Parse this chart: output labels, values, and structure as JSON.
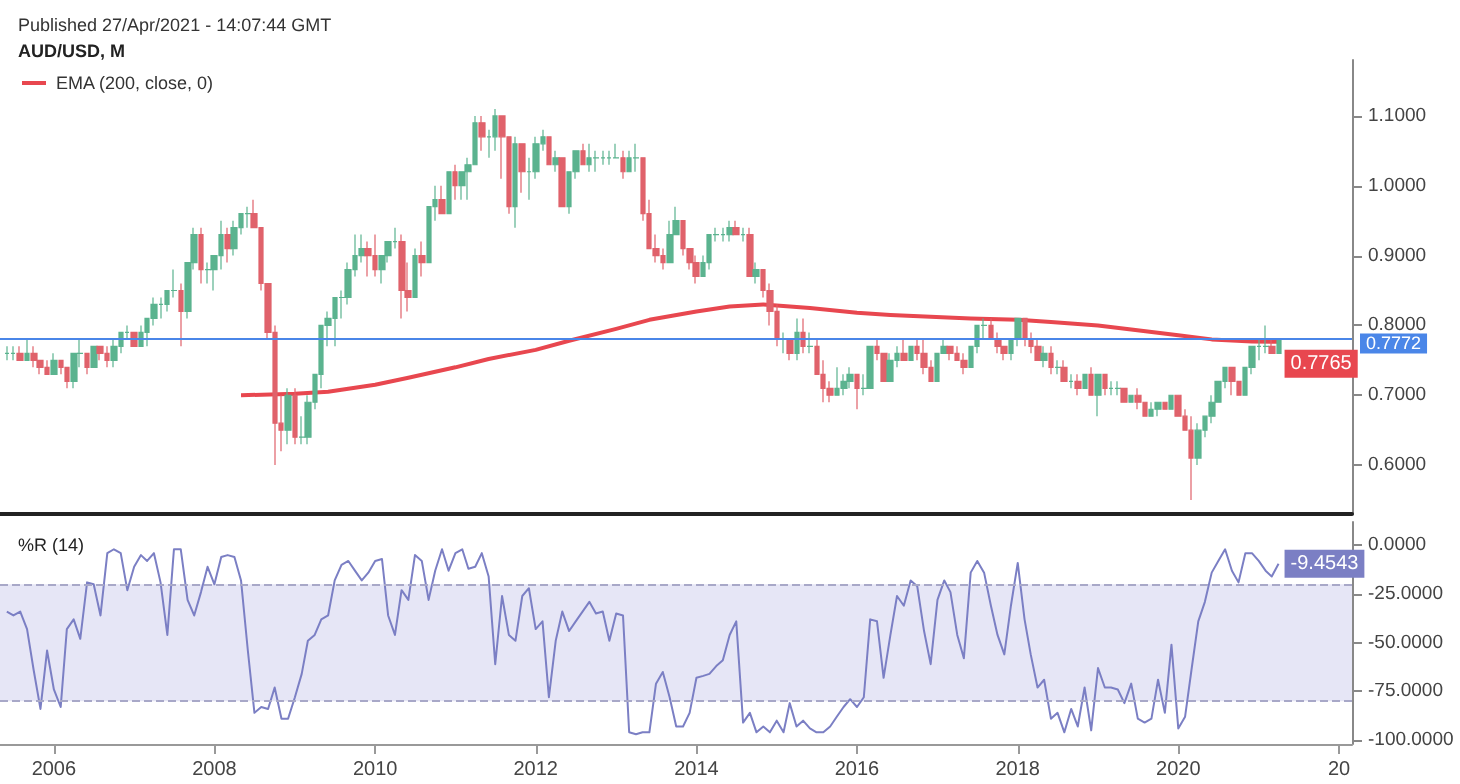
{
  "chart_data": [
    {
      "type": "candlestick",
      "title": "AUD/USD, M",
      "subtitle": "Published 27/Apr/2021 - 14:07:44 GMT",
      "x": [
        "2005-06",
        "2005-07",
        "2005-08",
        "2005-09",
        "2005-10",
        "2005-11",
        "2005-12",
        "2006-01",
        "2006-02",
        "2006-03",
        "2006-04",
        "2006-05",
        "2006-06",
        "2006-07",
        "2006-08",
        "2006-09",
        "2006-10",
        "2006-11",
        "2006-12",
        "2007-01",
        "2007-02",
        "2007-03",
        "2007-04",
        "2007-05",
        "2007-06",
        "2007-07",
        "2007-08",
        "2007-09",
        "2007-10",
        "2007-11",
        "2007-12",
        "2008-01",
        "2008-02",
        "2008-03",
        "2008-04",
        "2008-05",
        "2008-06",
        "2008-07",
        "2008-08",
        "2008-09",
        "2008-10",
        "2008-11",
        "2008-12",
        "2009-01",
        "2009-02",
        "2009-03",
        "2009-04",
        "2009-05",
        "2009-06",
        "2009-07",
        "2009-08",
        "2009-09",
        "2009-10",
        "2009-11",
        "2009-12",
        "2010-01",
        "2010-02",
        "2010-03",
        "2010-04",
        "2010-05",
        "2010-06",
        "2010-07",
        "2010-08",
        "2010-09",
        "2010-10",
        "2010-11",
        "2010-12",
        "2011-01",
        "2011-02",
        "2011-03",
        "2011-04",
        "2011-05",
        "2011-06",
        "2011-07",
        "2011-08",
        "2011-09",
        "2011-10",
        "2011-11",
        "2011-12",
        "2012-01",
        "2012-02",
        "2012-03",
        "2012-04",
        "2012-05",
        "2012-06",
        "2012-07",
        "2012-08",
        "2012-09",
        "2012-10",
        "2012-11",
        "2012-12",
        "2013-01",
        "2013-02",
        "2013-03",
        "2013-04",
        "2013-05",
        "2013-06",
        "2013-07",
        "2013-08",
        "2013-09",
        "2013-10",
        "2013-11",
        "2013-12",
        "2014-01",
        "2014-02",
        "2014-03",
        "2014-04",
        "2014-05",
        "2014-06",
        "2014-07",
        "2014-08",
        "2014-09",
        "2014-10",
        "2014-11",
        "2014-12",
        "2015-01",
        "2015-02",
        "2015-03",
        "2015-04",
        "2015-05",
        "2015-06",
        "2015-07",
        "2015-08",
        "2015-09",
        "2015-10",
        "2015-11",
        "2015-12",
        "2016-01",
        "2016-02",
        "2016-03",
        "2016-04",
        "2016-05",
        "2016-06",
        "2016-07",
        "2016-08",
        "2016-09",
        "2016-10",
        "2016-11",
        "2016-12",
        "2017-01",
        "2017-02",
        "2017-03",
        "2017-04",
        "2017-05",
        "2017-06",
        "2017-07",
        "2017-08",
        "2017-09",
        "2017-10",
        "2017-11",
        "2017-12",
        "2018-01",
        "2018-02",
        "2018-03",
        "2018-04",
        "2018-05",
        "2018-06",
        "2018-07",
        "2018-08",
        "2018-09",
        "2018-10",
        "2018-11",
        "2018-12",
        "2019-01",
        "2019-02",
        "2019-03",
        "2019-04",
        "2019-05",
        "2019-06",
        "2019-07",
        "2019-08",
        "2019-09",
        "2019-10",
        "2019-11",
        "2019-12",
        "2020-01",
        "2020-02",
        "2020-03",
        "2020-04",
        "2020-05",
        "2020-06",
        "2020-07",
        "2020-08",
        "2020-09",
        "2020-10",
        "2020-11",
        "2020-12",
        "2021-01",
        "2021-02",
        "2021-03",
        "2021-04"
      ],
      "ohlc": [
        [
          0.76,
          0.77,
          0.75,
          0.76
        ],
        [
          0.76,
          0.77,
          0.75,
          0.76
        ],
        [
          0.76,
          0.77,
          0.75,
          0.75
        ],
        [
          0.75,
          0.78,
          0.75,
          0.76
        ],
        [
          0.76,
          0.77,
          0.74,
          0.75
        ],
        [
          0.75,
          0.75,
          0.73,
          0.74
        ],
        [
          0.74,
          0.75,
          0.73,
          0.73
        ],
        [
          0.73,
          0.76,
          0.73,
          0.75
        ],
        [
          0.75,
          0.75,
          0.73,
          0.74
        ],
        [
          0.74,
          0.74,
          0.71,
          0.72
        ],
        [
          0.72,
          0.76,
          0.71,
          0.76
        ],
        [
          0.76,
          0.78,
          0.74,
          0.76
        ],
        [
          0.76,
          0.76,
          0.73,
          0.74
        ],
        [
          0.74,
          0.77,
          0.74,
          0.77
        ],
        [
          0.77,
          0.77,
          0.75,
          0.76
        ],
        [
          0.76,
          0.77,
          0.74,
          0.75
        ],
        [
          0.75,
          0.78,
          0.74,
          0.77
        ],
        [
          0.77,
          0.79,
          0.76,
          0.79
        ],
        [
          0.79,
          0.8,
          0.78,
          0.79
        ],
        [
          0.79,
          0.79,
          0.77,
          0.77
        ],
        [
          0.77,
          0.8,
          0.77,
          0.79
        ],
        [
          0.79,
          0.81,
          0.77,
          0.81
        ],
        [
          0.81,
          0.84,
          0.8,
          0.83
        ],
        [
          0.83,
          0.84,
          0.81,
          0.83
        ],
        [
          0.83,
          0.85,
          0.82,
          0.85
        ],
        [
          0.85,
          0.88,
          0.84,
          0.85
        ],
        [
          0.85,
          0.86,
          0.77,
          0.82
        ],
        [
          0.82,
          0.89,
          0.81,
          0.89
        ],
        [
          0.89,
          0.94,
          0.88,
          0.93
        ],
        [
          0.93,
          0.94,
          0.86,
          0.88
        ],
        [
          0.88,
          0.89,
          0.86,
          0.88
        ],
        [
          0.88,
          0.9,
          0.85,
          0.9
        ],
        [
          0.9,
          0.95,
          0.88,
          0.93
        ],
        [
          0.93,
          0.94,
          0.89,
          0.91
        ],
        [
          0.91,
          0.95,
          0.9,
          0.94
        ],
        [
          0.94,
          0.96,
          0.93,
          0.96
        ],
        [
          0.96,
          0.97,
          0.94,
          0.96
        ],
        [
          0.96,
          0.98,
          0.94,
          0.94
        ],
        [
          0.94,
          0.94,
          0.85,
          0.86
        ],
        [
          0.86,
          0.86,
          0.78,
          0.79
        ],
        [
          0.79,
          0.8,
          0.6,
          0.66
        ],
        [
          0.66,
          0.7,
          0.62,
          0.65
        ],
        [
          0.65,
          0.71,
          0.63,
          0.7
        ],
        [
          0.7,
          0.71,
          0.63,
          0.64
        ],
        [
          0.64,
          0.67,
          0.63,
          0.64
        ],
        [
          0.64,
          0.7,
          0.63,
          0.69
        ],
        [
          0.69,
          0.73,
          0.68,
          0.73
        ],
        [
          0.73,
          0.8,
          0.71,
          0.8
        ],
        [
          0.8,
          0.82,
          0.77,
          0.81
        ],
        [
          0.81,
          0.84,
          0.77,
          0.84
        ],
        [
          0.84,
          0.85,
          0.81,
          0.84
        ],
        [
          0.84,
          0.89,
          0.83,
          0.88
        ],
        [
          0.88,
          0.93,
          0.87,
          0.9
        ],
        [
          0.9,
          0.93,
          0.89,
          0.91
        ],
        [
          0.91,
          0.92,
          0.87,
          0.9
        ],
        [
          0.9,
          0.93,
          0.87,
          0.88
        ],
        [
          0.88,
          0.9,
          0.86,
          0.9
        ],
        [
          0.9,
          0.92,
          0.89,
          0.92
        ],
        [
          0.92,
          0.94,
          0.91,
          0.92
        ],
        [
          0.92,
          0.93,
          0.81,
          0.85
        ],
        [
          0.85,
          0.89,
          0.82,
          0.84
        ],
        [
          0.84,
          0.91,
          0.84,
          0.9
        ],
        [
          0.9,
          0.92,
          0.87,
          0.89
        ],
        [
          0.89,
          0.97,
          0.89,
          0.97
        ],
        [
          0.97,
          1.0,
          0.95,
          0.98
        ],
        [
          0.98,
          1.0,
          0.96,
          0.96
        ],
        [
          0.96,
          1.02,
          0.96,
          1.02
        ],
        [
          1.02,
          1.03,
          0.98,
          1.0
        ],
        [
          1.0,
          1.02,
          0.98,
          1.02
        ],
        [
          1.02,
          1.04,
          0.98,
          1.03
        ],
        [
          1.03,
          1.1,
          1.03,
          1.09
        ],
        [
          1.09,
          1.1,
          1.05,
          1.07
        ],
        [
          1.07,
          1.08,
          1.04,
          1.07
        ],
        [
          1.07,
          1.11,
          1.05,
          1.1
        ],
        [
          1.1,
          1.1,
          1.01,
          1.07
        ],
        [
          1.07,
          1.07,
          0.96,
          0.97
        ],
        [
          0.97,
          1.07,
          0.94,
          1.06
        ],
        [
          1.06,
          1.06,
          0.99,
          1.02
        ],
        [
          1.02,
          1.04,
          0.98,
          1.02
        ],
        [
          1.02,
          1.07,
          1.01,
          1.06
        ],
        [
          1.06,
          1.08,
          1.05,
          1.07
        ],
        [
          1.07,
          1.07,
          1.03,
          1.03
        ],
        [
          1.03,
          1.05,
          1.02,
          1.04
        ],
        [
          1.04,
          1.04,
          0.97,
          0.97
        ],
        [
          0.97,
          1.02,
          0.96,
          1.02
        ],
        [
          1.02,
          1.05,
          1.01,
          1.05
        ],
        [
          1.05,
          1.06,
          1.03,
          1.03
        ],
        [
          1.03,
          1.06,
          1.02,
          1.04
        ],
        [
          1.04,
          1.05,
          1.02,
          1.04
        ],
        [
          1.04,
          1.05,
          1.03,
          1.04
        ],
        [
          1.04,
          1.05,
          1.03,
          1.04
        ],
        [
          1.04,
          1.06,
          1.04,
          1.04
        ],
        [
          1.04,
          1.05,
          1.01,
          1.02
        ],
        [
          1.02,
          1.05,
          1.02,
          1.04
        ],
        [
          1.04,
          1.06,
          1.02,
          1.04
        ],
        [
          1.04,
          1.04,
          0.95,
          0.96
        ],
        [
          0.96,
          0.98,
          0.91,
          0.91
        ],
        [
          0.91,
          0.93,
          0.89,
          0.9
        ],
        [
          0.9,
          0.91,
          0.88,
          0.89
        ],
        [
          0.89,
          0.95,
          0.89,
          0.93
        ],
        [
          0.93,
          0.97,
          0.93,
          0.95
        ],
        [
          0.95,
          0.95,
          0.9,
          0.91
        ],
        [
          0.91,
          0.91,
          0.88,
          0.89
        ],
        [
          0.89,
          0.9,
          0.86,
          0.87
        ],
        [
          0.87,
          0.9,
          0.87,
          0.89
        ],
        [
          0.89,
          0.93,
          0.88,
          0.93
        ],
        [
          0.93,
          0.94,
          0.92,
          0.93
        ],
        [
          0.93,
          0.94,
          0.92,
          0.93
        ],
        [
          0.93,
          0.95,
          0.92,
          0.94
        ],
        [
          0.94,
          0.95,
          0.93,
          0.93
        ],
        [
          0.93,
          0.94,
          0.92,
          0.93
        ],
        [
          0.93,
          0.94,
          0.87,
          0.87
        ],
        [
          0.87,
          0.89,
          0.86,
          0.88
        ],
        [
          0.88,
          0.88,
          0.84,
          0.85
        ],
        [
          0.85,
          0.86,
          0.8,
          0.82
        ],
        [
          0.82,
          0.83,
          0.77,
          0.78
        ],
        [
          0.78,
          0.79,
          0.76,
          0.78
        ],
        [
          0.78,
          0.78,
          0.75,
          0.76
        ],
        [
          0.76,
          0.81,
          0.75,
          0.79
        ],
        [
          0.79,
          0.81,
          0.76,
          0.77
        ],
        [
          0.77,
          0.79,
          0.76,
          0.77
        ],
        [
          0.77,
          0.78,
          0.73,
          0.73
        ],
        [
          0.73,
          0.75,
          0.69,
          0.71
        ],
        [
          0.71,
          0.72,
          0.69,
          0.7
        ],
        [
          0.7,
          0.74,
          0.7,
          0.71
        ],
        [
          0.71,
          0.73,
          0.7,
          0.72
        ],
        [
          0.72,
          0.74,
          0.71,
          0.73
        ],
        [
          0.73,
          0.73,
          0.68,
          0.71
        ],
        [
          0.71,
          0.73,
          0.7,
          0.71
        ],
        [
          0.71,
          0.77,
          0.71,
          0.77
        ],
        [
          0.77,
          0.78,
          0.75,
          0.76
        ],
        [
          0.76,
          0.76,
          0.72,
          0.72
        ],
        [
          0.72,
          0.76,
          0.72,
          0.75
        ],
        [
          0.75,
          0.77,
          0.74,
          0.76
        ],
        [
          0.76,
          0.78,
          0.75,
          0.75
        ],
        [
          0.75,
          0.77,
          0.75,
          0.77
        ],
        [
          0.77,
          0.78,
          0.75,
          0.76
        ],
        [
          0.76,
          0.78,
          0.73,
          0.74
        ],
        [
          0.74,
          0.75,
          0.72,
          0.72
        ],
        [
          0.72,
          0.76,
          0.72,
          0.76
        ],
        [
          0.76,
          0.78,
          0.76,
          0.77
        ],
        [
          0.77,
          0.77,
          0.75,
          0.76
        ],
        [
          0.76,
          0.77,
          0.75,
          0.75
        ],
        [
          0.75,
          0.76,
          0.73,
          0.74
        ],
        [
          0.74,
          0.77,
          0.74,
          0.77
        ],
        [
          0.77,
          0.8,
          0.76,
          0.8
        ],
        [
          0.8,
          0.81,
          0.78,
          0.8
        ],
        [
          0.8,
          0.81,
          0.78,
          0.78
        ],
        [
          0.78,
          0.79,
          0.76,
          0.77
        ],
        [
          0.77,
          0.77,
          0.75,
          0.76
        ],
        [
          0.76,
          0.78,
          0.75,
          0.78
        ],
        [
          0.78,
          0.81,
          0.77,
          0.81
        ],
        [
          0.81,
          0.81,
          0.77,
          0.78
        ],
        [
          0.78,
          0.79,
          0.76,
          0.77
        ],
        [
          0.77,
          0.78,
          0.75,
          0.75
        ],
        [
          0.75,
          0.77,
          0.74,
          0.76
        ],
        [
          0.76,
          0.77,
          0.73,
          0.74
        ],
        [
          0.74,
          0.75,
          0.73,
          0.74
        ],
        [
          0.74,
          0.75,
          0.72,
          0.72
        ],
        [
          0.72,
          0.73,
          0.71,
          0.72
        ],
        [
          0.72,
          0.73,
          0.7,
          0.71
        ],
        [
          0.71,
          0.73,
          0.71,
          0.73
        ],
        [
          0.73,
          0.74,
          0.7,
          0.7
        ],
        [
          0.7,
          0.73,
          0.67,
          0.73
        ],
        [
          0.73,
          0.73,
          0.7,
          0.71
        ],
        [
          0.71,
          0.72,
          0.7,
          0.71
        ],
        [
          0.71,
          0.72,
          0.7,
          0.71
        ],
        [
          0.71,
          0.71,
          0.69,
          0.69
        ],
        [
          0.69,
          0.7,
          0.69,
          0.7
        ],
        [
          0.7,
          0.71,
          0.68,
          0.69
        ],
        [
          0.69,
          0.69,
          0.67,
          0.67
        ],
        [
          0.67,
          0.69,
          0.67,
          0.68
        ],
        [
          0.68,
          0.69,
          0.67,
          0.69
        ],
        [
          0.69,
          0.69,
          0.68,
          0.68
        ],
        [
          0.68,
          0.7,
          0.68,
          0.7
        ],
        [
          0.7,
          0.7,
          0.67,
          0.67
        ],
        [
          0.67,
          0.68,
          0.65,
          0.65
        ],
        [
          0.65,
          0.67,
          0.55,
          0.61
        ],
        [
          0.61,
          0.66,
          0.6,
          0.65
        ],
        [
          0.65,
          0.67,
          0.64,
          0.67
        ],
        [
          0.67,
          0.7,
          0.66,
          0.69
        ],
        [
          0.69,
          0.72,
          0.69,
          0.72
        ],
        [
          0.72,
          0.74,
          0.71,
          0.74
        ],
        [
          0.74,
          0.74,
          0.7,
          0.72
        ],
        [
          0.72,
          0.72,
          0.7,
          0.7
        ],
        [
          0.7,
          0.74,
          0.7,
          0.74
        ],
        [
          0.74,
          0.77,
          0.73,
          0.77
        ],
        [
          0.77,
          0.78,
          0.75,
          0.77
        ],
        [
          0.77,
          0.8,
          0.76,
          0.77
        ],
        [
          0.77,
          0.78,
          0.76,
          0.76
        ],
        [
          0.76,
          0.78,
          0.76,
          0.78
        ]
      ],
      "series": [
        {
          "type": "line",
          "name": "EMA (200, close, 0)",
          "color": "#e8474f",
          "x": [
            "2008-05",
            "2009-01",
            "2009-06",
            "2010-01",
            "2010-06",
            "2011-01",
            "2011-06",
            "2012-01",
            "2012-06",
            "2013-01",
            "2013-06",
            "2014-01",
            "2014-06",
            "2014-11",
            "2015-06",
            "2016-01",
            "2016-06",
            "2017-06",
            "2018-01",
            "2018-06",
            "2019-01",
            "2019-06",
            "2020-01",
            "2020-06",
            "2020-12",
            "2021-04"
          ],
          "values": [
            0.7,
            0.702,
            0.705,
            0.715,
            0.725,
            0.74,
            0.752,
            0.765,
            0.778,
            0.795,
            0.808,
            0.82,
            0.827,
            0.83,
            0.825,
            0.818,
            0.815,
            0.81,
            0.808,
            0.805,
            0.8,
            0.794,
            0.786,
            0.78,
            0.777,
            0.7765
          ],
          "value_labels": [
            null,
            null,
            null,
            null,
            null,
            null,
            null,
            null,
            null,
            null,
            null,
            null,
            null,
            null,
            null,
            null,
            null,
            null,
            null,
            null,
            null,
            null,
            null,
            null,
            null,
            "0.7765"
          ]
        }
      ],
      "xlim": [
        "2005-05",
        "2022-03"
      ],
      "ylim": [
        0.53,
        1.18
      ],
      "yticks": [
        {
          "value": 0.6,
          "label": "0.6000"
        },
        {
          "value": 0.7,
          "label": "0.7000"
        },
        {
          "value": 0.8,
          "label": "0.8000"
        },
        {
          "value": 0.9,
          "label": "0.9000"
        },
        {
          "value": 1.0,
          "label": "1.0000"
        },
        {
          "value": 1.1,
          "label": "1.1000"
        }
      ],
      "ref_lines": [
        {
          "axis": "y",
          "value": 0.7772,
          "label": "0.7772",
          "color": "#4a86e8"
        }
      ],
      "tick_labels": "y",
      "grid": false,
      "legend": "top left"
    },
    {
      "type": "line",
      "title": "%R (14)",
      "x": [
        "2005-06",
        "2005-07",
        "2005-08",
        "2005-09",
        "2005-10",
        "2005-11",
        "2005-12",
        "2006-01",
        "2006-02",
        "2006-03",
        "2006-04",
        "2006-05",
        "2006-06",
        "2006-07",
        "2006-08",
        "2006-09",
        "2006-10",
        "2006-11",
        "2006-12",
        "2007-01",
        "2007-02",
        "2007-03",
        "2007-04",
        "2007-05",
        "2007-06",
        "2007-07",
        "2007-08",
        "2007-09",
        "2007-10",
        "2007-11",
        "2007-12",
        "2008-01",
        "2008-02",
        "2008-03",
        "2008-04",
        "2008-05",
        "2008-06",
        "2008-07",
        "2008-08",
        "2008-09",
        "2008-10",
        "2008-11",
        "2008-12",
        "2009-01",
        "2009-02",
        "2009-03",
        "2009-04",
        "2009-05",
        "2009-06",
        "2009-07",
        "2009-08",
        "2009-09",
        "2009-10",
        "2009-11",
        "2009-12",
        "2010-01",
        "2010-02",
        "2010-03",
        "2010-04",
        "2010-05",
        "2010-06",
        "2010-07",
        "2010-08",
        "2010-09",
        "2010-10",
        "2010-11",
        "2010-12",
        "2011-01",
        "2011-02",
        "2011-03",
        "2011-04",
        "2011-05",
        "2011-06",
        "2011-07",
        "2011-08",
        "2011-09",
        "2011-10",
        "2011-11",
        "2011-12",
        "2012-01",
        "2012-02",
        "2012-03",
        "2012-04",
        "2012-05",
        "2012-06",
        "2012-07",
        "2012-08",
        "2012-09",
        "2012-10",
        "2012-11",
        "2012-12",
        "2013-01",
        "2013-02",
        "2013-03",
        "2013-04",
        "2013-05",
        "2013-06",
        "2013-07",
        "2013-08",
        "2013-09",
        "2013-10",
        "2013-11",
        "2013-12",
        "2014-01",
        "2014-02",
        "2014-03",
        "2014-04",
        "2014-05",
        "2014-06",
        "2014-07",
        "2014-08",
        "2014-09",
        "2014-10",
        "2014-11",
        "2014-12",
        "2015-01",
        "2015-02",
        "2015-03",
        "2015-04",
        "2015-05",
        "2015-06",
        "2015-07",
        "2015-08",
        "2015-09",
        "2015-10",
        "2015-11",
        "2015-12",
        "2016-01",
        "2016-02",
        "2016-03",
        "2016-04",
        "2016-05",
        "2016-06",
        "2016-07",
        "2016-08",
        "2016-09",
        "2016-10",
        "2016-11",
        "2016-12",
        "2017-01",
        "2017-02",
        "2017-03",
        "2017-04",
        "2017-05",
        "2017-06",
        "2017-07",
        "2017-08",
        "2017-09",
        "2017-10",
        "2017-11",
        "2017-12",
        "2018-01",
        "2018-02",
        "2018-03",
        "2018-04",
        "2018-05",
        "2018-06",
        "2018-07",
        "2018-08",
        "2018-09",
        "2018-10",
        "2018-11",
        "2018-12",
        "2019-01",
        "2019-02",
        "2019-03",
        "2019-04",
        "2019-05",
        "2019-06",
        "2019-07",
        "2019-08",
        "2019-09",
        "2019-10",
        "2019-11",
        "2019-12",
        "2020-01",
        "2020-02",
        "2020-03",
        "2020-04",
        "2020-05",
        "2020-06",
        "2020-07",
        "2020-08",
        "2020-09",
        "2020-10",
        "2020-11",
        "2020-12",
        "2021-01",
        "2021-02",
        "2021-03",
        "2021-04"
      ],
      "series": [
        {
          "color": "#7b7fc4",
          "values": [
            -34,
            -36,
            -34,
            -43,
            -64,
            -84,
            -54,
            -74,
            -83,
            -43,
            -38,
            -48,
            -19,
            -20,
            -36,
            -4,
            -2,
            -4,
            -23,
            -11,
            -5,
            -8,
            -4,
            -19,
            -46,
            -2,
            -2,
            -28,
            -36,
            -24,
            -11,
            -20,
            -6,
            -5,
            -6,
            -18,
            -54,
            -86,
            -83,
            -84,
            -73,
            -89,
            -89,
            -78,
            -66,
            -49,
            -46,
            -38,
            -36,
            -18,
            -10,
            -8,
            -13,
            -18,
            -14,
            -8,
            -7,
            -36,
            -46,
            -23,
            -28,
            -5,
            -8,
            -28,
            -13,
            -2,
            -13,
            -4,
            -2,
            -12,
            -11,
            -4,
            -16,
            -61,
            -26,
            -46,
            -49,
            -26,
            -22,
            -43,
            -39,
            -78,
            -49,
            -34,
            -44,
            -39,
            -34,
            -29,
            -35,
            -34,
            -49,
            -35,
            -36,
            -96,
            -97,
            -96,
            -96,
            -71,
            -65,
            -78,
            -93,
            -93,
            -86,
            -68,
            -67,
            -66,
            -62,
            -59,
            -46,
            -39,
            -91,
            -86,
            -96,
            -93,
            -96,
            -90,
            -96,
            -81,
            -93,
            -90,
            -94,
            -96,
            -96,
            -93,
            -88,
            -83,
            -79,
            -83,
            -78,
            -38,
            -39,
            -68,
            -46,
            -26,
            -31,
            -18,
            -21,
            -44,
            -61,
            -28,
            -18,
            -24,
            -46,
            -58,
            -14,
            -8,
            -14,
            -31,
            -46,
            -56,
            -31,
            -9,
            -38,
            -56,
            -73,
            -69,
            -89,
            -86,
            -96,
            -84,
            -93,
            -73,
            -95,
            -63,
            -73,
            -73,
            -74,
            -81,
            -71,
            -89,
            -91,
            -89,
            -69,
            -86,
            -51,
            -94,
            -88,
            -64,
            -39,
            -29,
            -14,
            -8,
            -2,
            -13,
            -19,
            -4,
            -4,
            -8,
            -13,
            -16,
            -9.4543
          ],
          "value_labels": [
            null,
            null,
            null,
            null,
            null,
            null,
            null,
            null,
            null,
            null,
            null,
            null,
            null,
            null,
            null,
            null,
            null,
            null,
            null,
            null,
            null,
            null,
            null,
            null,
            null,
            null,
            null,
            null,
            null,
            null,
            null,
            null,
            null,
            null,
            null,
            null,
            null,
            null,
            null,
            null,
            null,
            null,
            null,
            null,
            null,
            null,
            null,
            null,
            null,
            null,
            null,
            null,
            null,
            null,
            null,
            null,
            null,
            null,
            null,
            null,
            null,
            null,
            null,
            null,
            null,
            null,
            null,
            null,
            null,
            null,
            null,
            null,
            null,
            null,
            null,
            null,
            null,
            null,
            null,
            null,
            null,
            null,
            null,
            null,
            null,
            null,
            null,
            null,
            null,
            null,
            null,
            null,
            null,
            null,
            null,
            null,
            null,
            null,
            null,
            null,
            null,
            null,
            null,
            null,
            null,
            null,
            null,
            null,
            null,
            null,
            null,
            null,
            null,
            null,
            null,
            null,
            null,
            null,
            null,
            null,
            null,
            null,
            null,
            null,
            null,
            null,
            null,
            null,
            null,
            null,
            null,
            null,
            null,
            null,
            null,
            null,
            null,
            null,
            null,
            null,
            null,
            null,
            null,
            null,
            null,
            null,
            null,
            null,
            null,
            null,
            null,
            null,
            null,
            null,
            null,
            null,
            null,
            null,
            null,
            null,
            null,
            null,
            null,
            null,
            null,
            null,
            null,
            null,
            null,
            null,
            null,
            null,
            null,
            null,
            null,
            null,
            null,
            null,
            null,
            null,
            null,
            null,
            null,
            null,
            null,
            null,
            null,
            null,
            null,
            null,
            "-9.4543"
          ]
        }
      ],
      "xlim": [
        "2005-05",
        "2022-03"
      ],
      "xticks": [
        "2006",
        "2008",
        "2010",
        "2012",
        "2014",
        "2016",
        "2018",
        "2020",
        {
          "value": "2022",
          "label": "20"
        }
      ],
      "ylim": [
        -102,
        12
      ],
      "yticks": [
        {
          "value": 0,
          "label": "0.0000"
        },
        {
          "value": -25,
          "label": "-25.0000"
        },
        {
          "value": -50,
          "label": "-50.0000"
        },
        {
          "value": -75,
          "label": "-75.0000"
        },
        {
          "value": -100,
          "label": "-100.0000"
        }
      ],
      "bands": [
        {
          "axis": "y",
          "from": -80,
          "to": -20,
          "color": "#e6e6f6"
        }
      ],
      "ref_lines": [
        {
          "axis": "y",
          "value": -20,
          "color": "#a8a8c8",
          "line_style": "dashed"
        },
        {
          "axis": "y",
          "value": -80,
          "color": "#a8a8c8",
          "line_style": "dashed"
        }
      ],
      "grid": false
    }
  ]
}
